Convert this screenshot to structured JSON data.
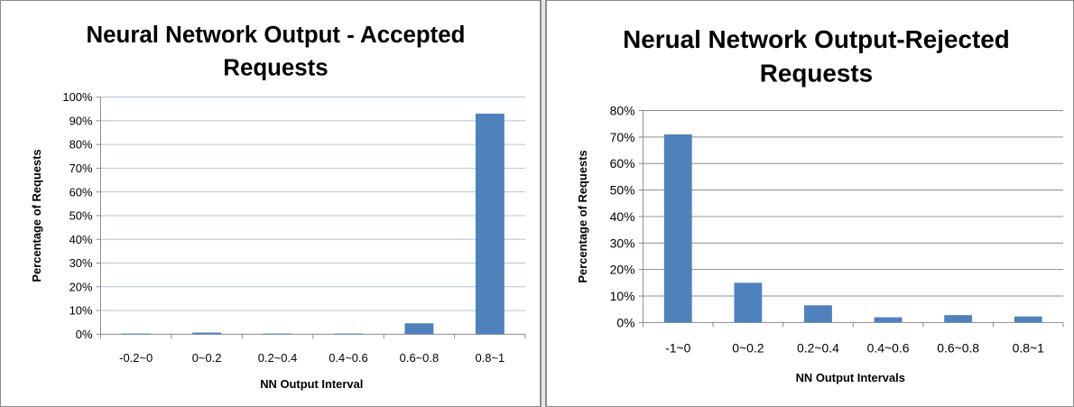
{
  "chart_data": [
    {
      "type": "bar",
      "title_lines": [
        "Neural Network Output - Accepted",
        "Requests"
      ],
      "xlabel": "NN Output Interval",
      "ylabel": "Percentage of Requests",
      "categories": [
        "-0.2~0",
        "0~0.2",
        "0.2~0.4",
        "0.4~0.6",
        "0.6~0.8",
        "0.8~1"
      ],
      "values": [
        0.3,
        0.7,
        0.3,
        0.3,
        4.6,
        93
      ],
      "ylim": [
        0,
        100
      ],
      "yticks": [
        0,
        10,
        20,
        30,
        40,
        50,
        60,
        70,
        80,
        90,
        100
      ],
      "ytick_labels": [
        "0%",
        "10%",
        "20%",
        "30%",
        "40%",
        "50%",
        "60%",
        "70%",
        "80%",
        "90%",
        "100%"
      ],
      "grid": true,
      "bar_color": "#4f81bd",
      "grid_color": "#b7c3de"
    },
    {
      "type": "bar",
      "title_lines": [
        "Nerual Network Output-Rejected",
        "Requests"
      ],
      "xlabel": "NN Output Intervals",
      "ylabel": "Percentage of Requests",
      "categories": [
        "-1~0",
        "0~0.2",
        "0.2~0.4",
        "0.4~0.6",
        "0.6~0.8",
        "0.8~1"
      ],
      "values": [
        71,
        15,
        6.5,
        2,
        2.8,
        2.3
      ],
      "ylim": [
        0,
        80
      ],
      "yticks": [
        0,
        10,
        20,
        30,
        40,
        50,
        60,
        70,
        80
      ],
      "ytick_labels": [
        "0%",
        "10%",
        "20%",
        "30%",
        "40%",
        "50%",
        "60%",
        "70%",
        "80%"
      ],
      "grid": true,
      "bar_color": "#4f81bd",
      "grid_color": "#8c8c8c"
    }
  ]
}
